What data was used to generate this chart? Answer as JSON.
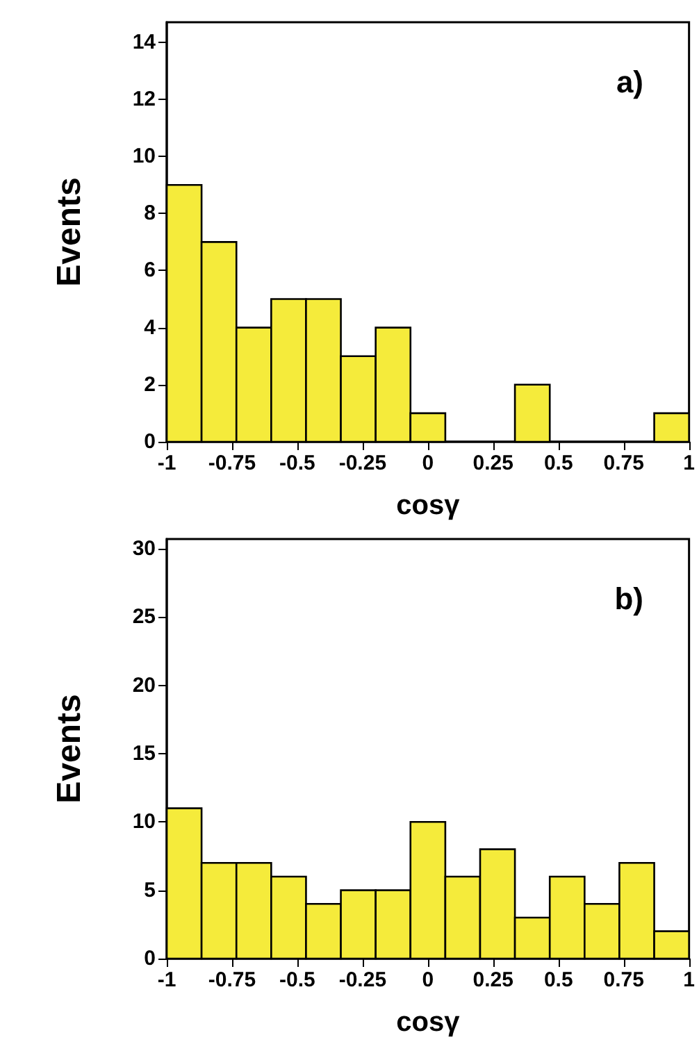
{
  "chart_data": [
    {
      "type": "histogram",
      "bins": [
        -1,
        -0.8667,
        -0.7333,
        -0.6,
        -0.4667,
        -0.3333,
        -0.2,
        -0.0667,
        0.0667,
        0.2,
        0.3333,
        0.4667,
        0.6,
        0.7333,
        0.8667,
        1
      ],
      "values": [
        9,
        7,
        4,
        5,
        5,
        3,
        4,
        1,
        0,
        0,
        2,
        0,
        0,
        0,
        1
      ],
      "color": "#f5eb3b",
      "xlabel": "cosγ",
      "ylabel": "Events",
      "xlim": [
        -1,
        1
      ],
      "xticks": [
        -1,
        -0.75,
        -0.5,
        -0.25,
        0,
        0.25,
        0.5,
        0.75,
        1
      ],
      "ylim": [
        0,
        14.7
      ],
      "yticks": [
        0,
        2,
        4,
        6,
        8,
        10,
        12,
        14
      ],
      "annotations": [
        "a)"
      ],
      "grid": false
    },
    {
      "type": "histogram",
      "bins": [
        -1,
        -0.8667,
        -0.7333,
        -0.6,
        -0.4667,
        -0.3333,
        -0.2,
        -0.0667,
        0.0667,
        0.2,
        0.3333,
        0.4667,
        0.6,
        0.7333,
        0.8667,
        1
      ],
      "values": [
        11,
        7,
        7,
        6,
        4,
        5,
        5,
        10,
        6,
        8,
        3,
        6,
        4,
        7,
        2
      ],
      "color": "#f5eb3b",
      "xlabel": "cosγ",
      "ylabel": "Events",
      "xlim": [
        -1,
        1
      ],
      "xticks": [
        -1,
        -0.75,
        -0.5,
        -0.25,
        0,
        0.25,
        0.5,
        0.75,
        1
      ],
      "ylim": [
        0,
        30.7
      ],
      "yticks": [
        0,
        5,
        10,
        15,
        20,
        25,
        30
      ],
      "annotations": [
        "b)"
      ],
      "grid": false
    }
  ]
}
